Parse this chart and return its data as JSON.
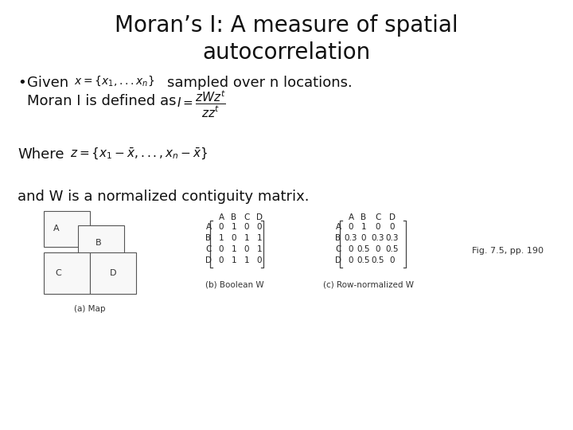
{
  "title_line1": "Moran’s I: A measure of spatial",
  "title_line2": "autocorrelation",
  "background_color": "#ffffff",
  "text_color": "#111111",
  "title_fontsize": 20,
  "body_fontsize": 13,
  "small_fontsize": 7.5,
  "fig_caption": "Fig. 7.5, pp. 190",
  "caption_a": "(a) Map",
  "caption_b": "(b) Boolean W",
  "caption_c": "(c) Row-normalized W",
  "bool_W": [
    [
      "A",
      "0",
      "1",
      "0",
      "0"
    ],
    [
      "B",
      "1",
      "0",
      "1",
      "1"
    ],
    [
      "C",
      "0",
      "1",
      "0",
      "1"
    ],
    [
      "D",
      "0",
      "1",
      "1",
      "0"
    ]
  ],
  "norm_W": [
    [
      "A",
      "0",
      "1",
      "0",
      "0"
    ],
    [
      "B",
      "0.3",
      "0",
      "0.3",
      "0.3"
    ],
    [
      "C",
      "0",
      "0.5",
      "0",
      "0.5"
    ],
    [
      "D",
      "0",
      "0.5",
      "0.5",
      "0"
    ]
  ],
  "col_headers": [
    "A",
    "B",
    "C",
    "D"
  ]
}
